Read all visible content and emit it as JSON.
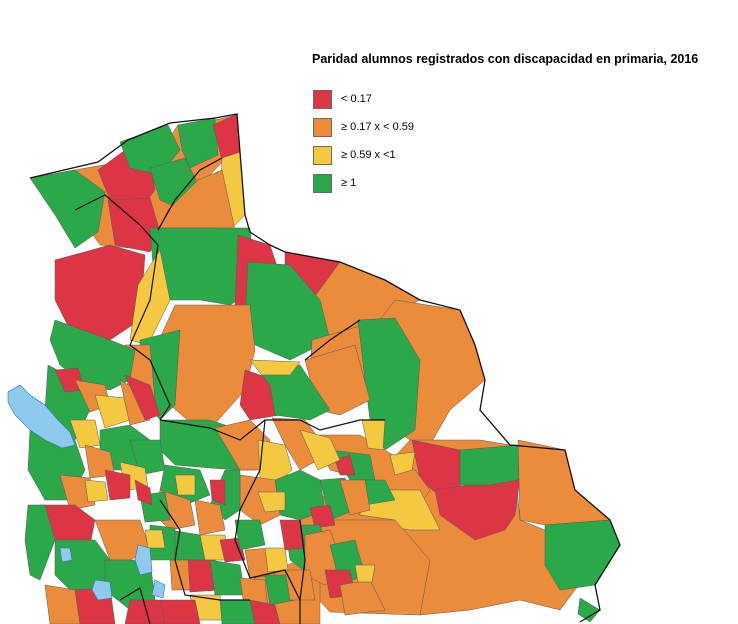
{
  "legend": {
    "title": "Paridad alumnos registrados con discapacidad en primaria, 2016",
    "items": [
      {
        "label": "< 0.17",
        "color": "#dc3545"
      },
      {
        "label": "≥ 0.17 x < 0.59",
        "color": "#ea8c3b"
      },
      {
        "label": "≥ 0.59 x <1",
        "color": "#f5c842"
      },
      {
        "label": "≥ 1",
        "color": "#2aa84a"
      }
    ]
  },
  "colors": {
    "red": "#dc3545",
    "orange": "#ea8c3b",
    "yellow": "#f5c842",
    "green": "#2aa84a",
    "lake": "#8ec9ee",
    "border": "#555555"
  }
}
